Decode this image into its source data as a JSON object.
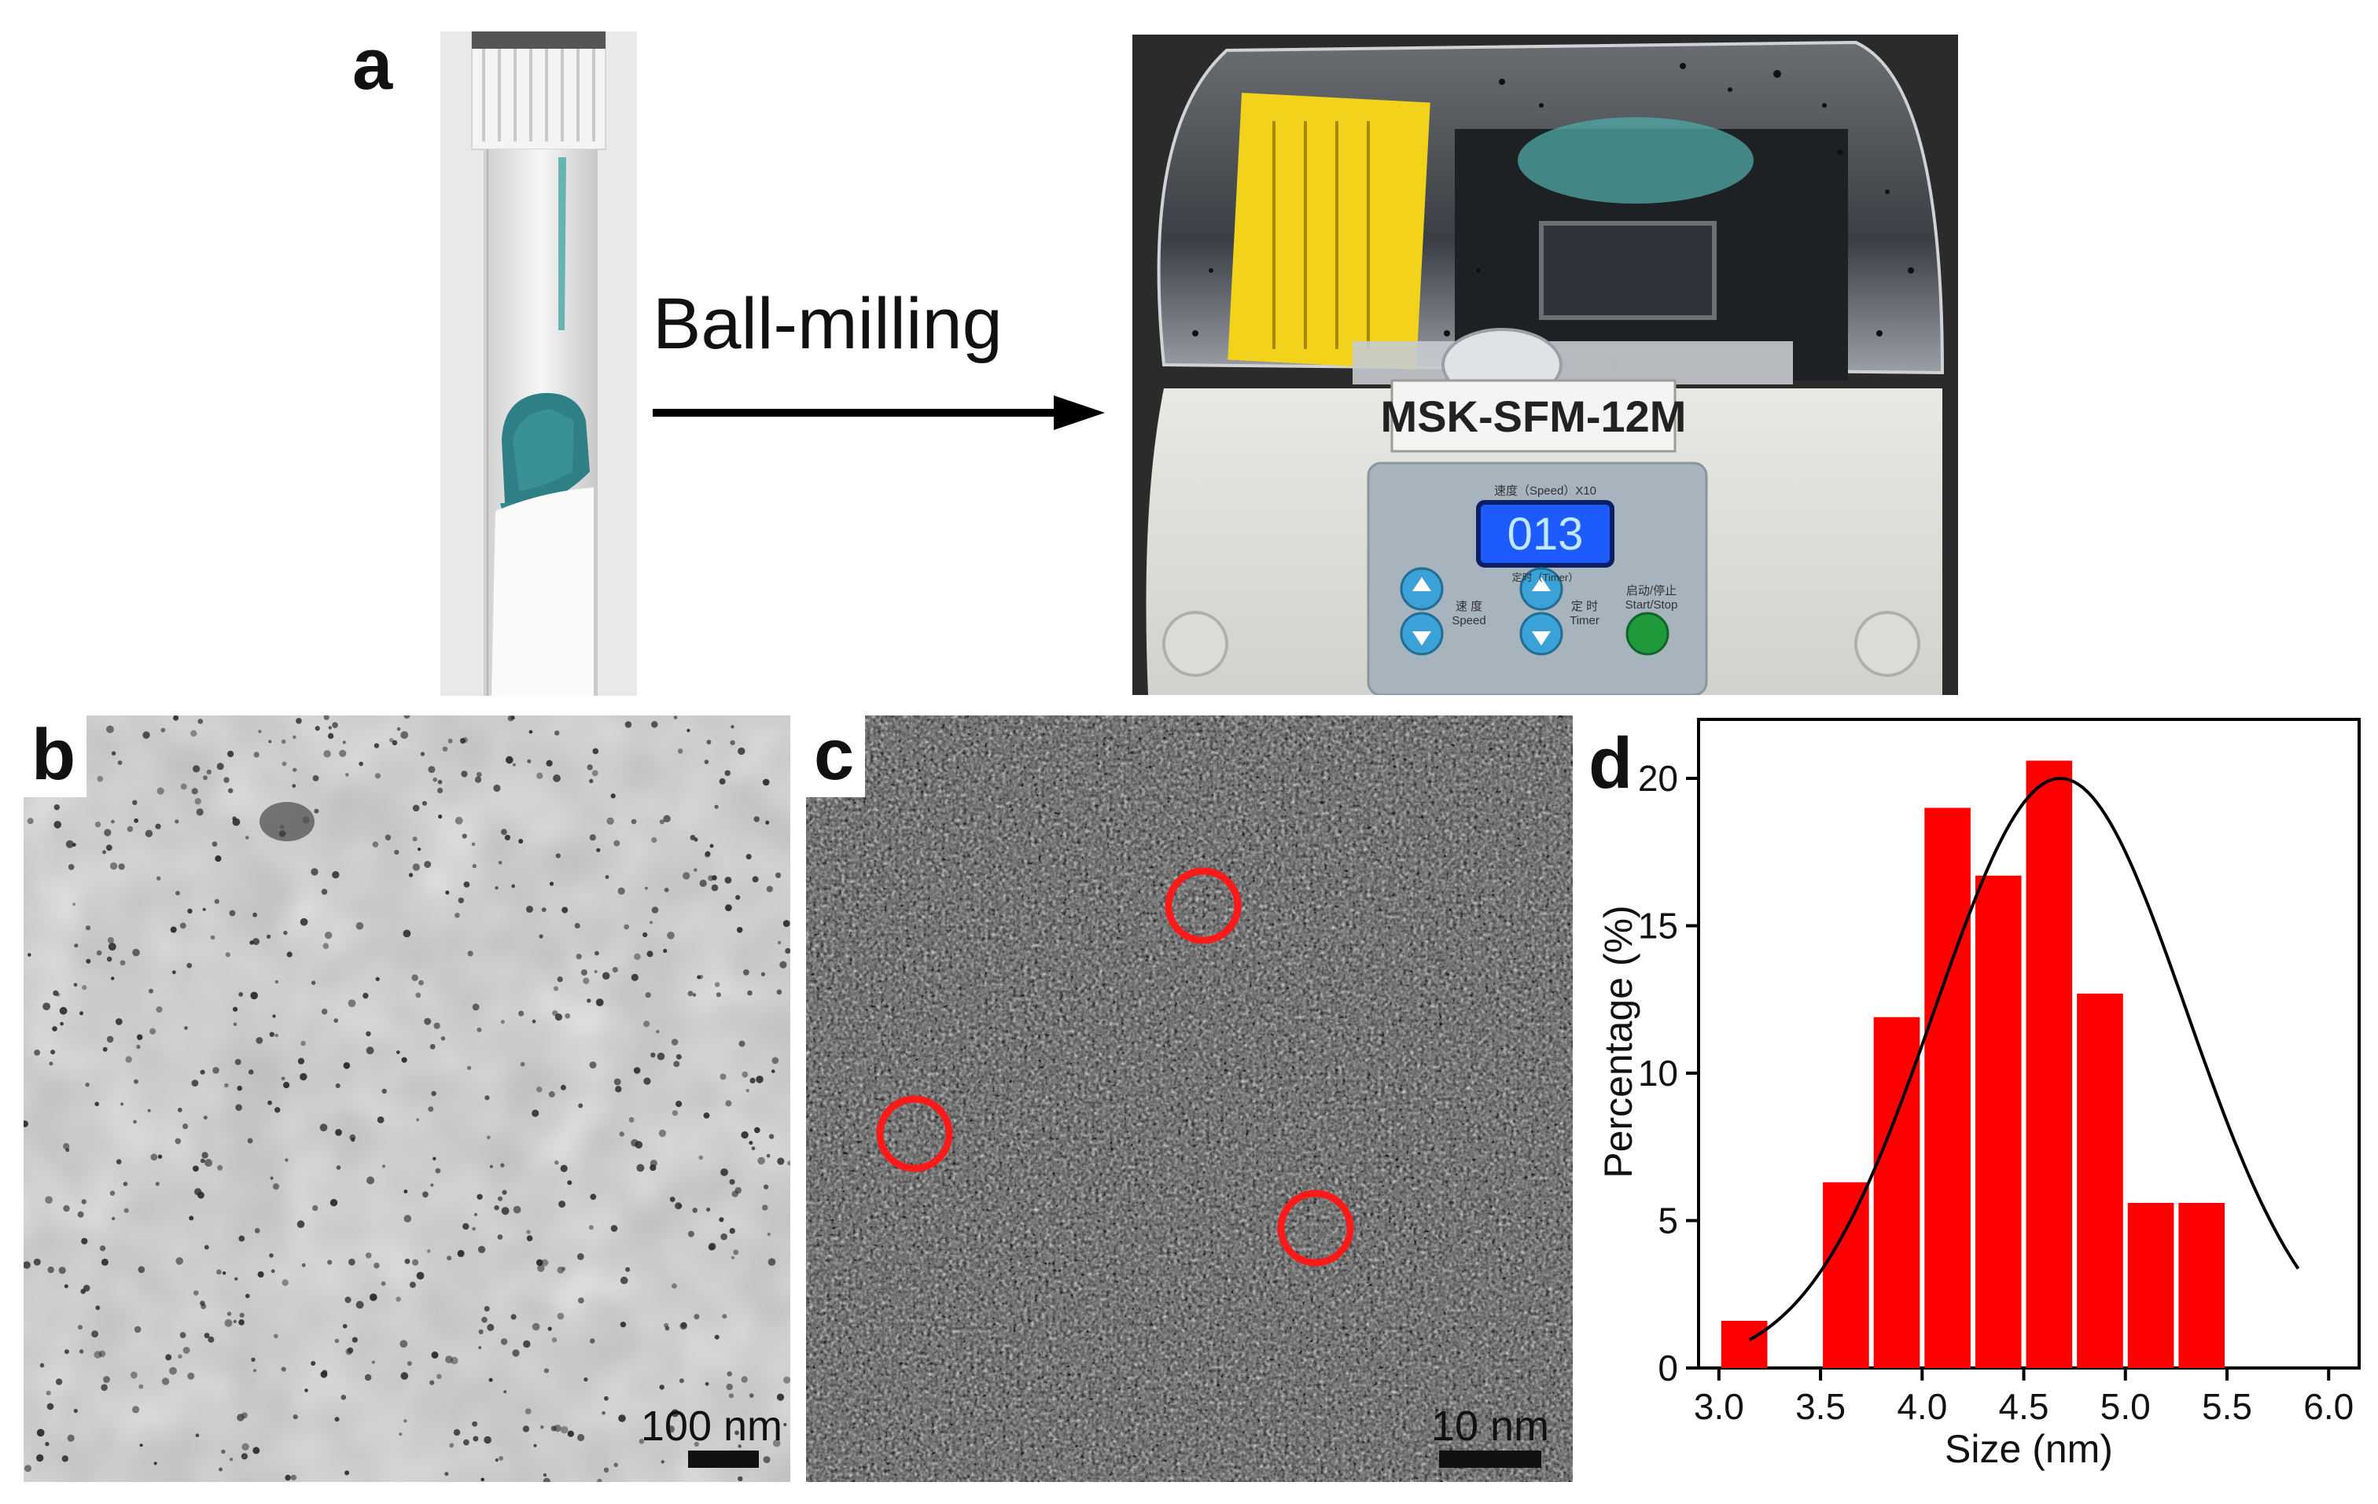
{
  "panels": {
    "a": {
      "letter": "a",
      "arrow_label": "Ball-milling",
      "device_model": "MSK-SFM-12M",
      "display_value": "013",
      "control_labels": {
        "speed_top": "速度（Speed）X10",
        "timer_bottom": "定时（Timer）",
        "speed": "Speed",
        "timer": "Timer",
        "start_stop": "Start/Stop",
        "speed_cn": "速 度",
        "timer_cn": "定 时",
        "start_stop_cn": "启动/停止"
      }
    },
    "b": {
      "letter": "b",
      "scale_bar": "100 nm"
    },
    "c": {
      "letter": "c",
      "scale_bar": "10 nm",
      "marked_particles": 3
    },
    "d": {
      "letter": "d"
    }
  },
  "chart_data": {
    "type": "bar",
    "xlabel": "Size (nm)",
    "ylabel": "Percentage (%)",
    "xlim": [
      2.9,
      6.15
    ],
    "ylim": [
      0,
      22
    ],
    "xticks": [
      "3.0",
      "3.5",
      "4.0",
      "4.5",
      "5.0",
      "5.5",
      "6.0"
    ],
    "yticks": [
      "0",
      "5",
      "10",
      "15",
      "20"
    ],
    "bin_width": 0.25,
    "bars": [
      {
        "x": 3.125,
        "value": 1.6
      },
      {
        "x": 3.375,
        "value": 0
      },
      {
        "x": 3.625,
        "value": 6.3
      },
      {
        "x": 3.875,
        "value": 11.9
      },
      {
        "x": 4.125,
        "value": 19.0
      },
      {
        "x": 4.375,
        "value": 16.7
      },
      {
        "x": 4.625,
        "value": 20.6
      },
      {
        "x": 4.875,
        "value": 12.7
      },
      {
        "x": 5.125,
        "value": 5.6
      },
      {
        "x": 5.375,
        "value": 5.6
      }
    ],
    "fit": {
      "type": "gaussian",
      "center": 4.68,
      "amplitude": 20.0,
      "sigma": 0.62,
      "x_range": [
        3.15,
        5.85
      ]
    },
    "bar_color": "#ff0000",
    "fit_color": "#000000",
    "grid": false
  }
}
